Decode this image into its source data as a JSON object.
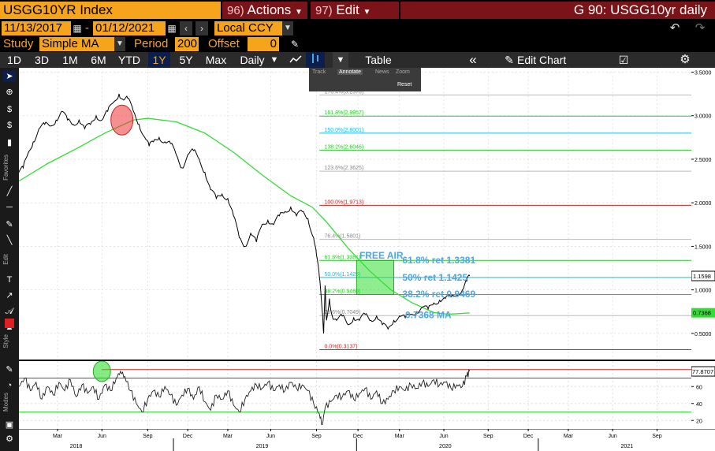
{
  "header": {
    "ticker": "USGG10YR Index",
    "actions_num": "96)",
    "actions_label": "Actions",
    "edit_num": "97)",
    "edit_label": "Edit",
    "page_title": "G 90: USGG10yr daily"
  },
  "range": {
    "start": "11/13/2017",
    "end": "01/12/2021",
    "currency": "Local CCY"
  },
  "study": {
    "label": "Study",
    "value": "Simple MA",
    "period_label": "Period",
    "period_value": "200",
    "offset_label": "Offset",
    "offset_value": "0"
  },
  "toolbar": {
    "periods": [
      "1D",
      "3D",
      "1M",
      "6M",
      "YTD",
      "1Y",
      "5Y",
      "Max"
    ],
    "active_period": "1Y",
    "frequency": "Daily",
    "table_label": "Table",
    "edit_chart_label": "Edit Chart"
  },
  "sub_toolbar": {
    "track": "Track",
    "annotate": "Annotate",
    "news": "News",
    "zoom": "Zoom",
    "reset": "Reset"
  },
  "rail": {
    "favorites": "Favorites",
    "edit": "Edit",
    "style": "Style",
    "modes": "Modes"
  },
  "chart_data": {
    "type": "line",
    "y_ticks": [
      "3.5000",
      "3.0000",
      "2.5000",
      "2.0000",
      "1.5000",
      "1.0000",
      "0.5000"
    ],
    "y_tick_values": [
      3.5,
      3.0,
      2.5,
      2.0,
      1.5,
      1.0,
      0.5
    ],
    "ylim": [
      0.2,
      3.55
    ],
    "last_price_label": "1.1598",
    "last_price": 1.1598,
    "ma_label": "0.7368",
    "ma_value": 0.7368,
    "fib_levels": [
      {
        "label": "176.4%(3.2378)",
        "value": 3.2378,
        "color": "#bbbbbb"
      },
      {
        "label": "161.8%(2.9957)",
        "value": 2.9957,
        "color": "#22cc22"
      },
      {
        "label": "150.0%(2.8001)",
        "value": 2.8001,
        "color": "#11bbee"
      },
      {
        "label": "138.2%(2.6046)",
        "value": 2.6046,
        "color": "#22cc22"
      },
      {
        "label": "123.6%(2.3625)",
        "value": 2.3625,
        "color": "#bbbbbb"
      },
      {
        "label": "100.0%(1.9713)",
        "value": 1.9713,
        "color": "#cc2222"
      },
      {
        "label": "76.4%(1.5801)",
        "value": 1.5801,
        "color": "#bbbbbb"
      },
      {
        "label": "61.8%(1.3381)",
        "value": 1.3381,
        "color": "#22cc22"
      },
      {
        "label": "50.0%(1.1425)",
        "value": 1.1425,
        "color": "#11bbee"
      },
      {
        "label": "38.2%(0.9469)",
        "value": 0.9469,
        "color": "#22cc22"
      },
      {
        "label": "23.6%(0.7049)",
        "value": 0.7049,
        "color": "#bbbbbb"
      },
      {
        "label": "0.0%(0.3137)",
        "value": 0.3137,
        "color": "#cc2222"
      }
    ],
    "annotations": {
      "free_air": "FREE AIR",
      "ret_618": "61.8% ret 1.3381",
      "ret_50": "50% ret 1.1425",
      "ret_382": "38.2% ret 0.9469",
      "ma_text": "0.7368 MA"
    },
    "price_series": [
      [
        0,
        2.35
      ],
      [
        3,
        2.4
      ],
      [
        6,
        2.55
      ],
      [
        10,
        2.7
      ],
      [
        14,
        2.85
      ],
      [
        18,
        2.9
      ],
      [
        22,
        2.88
      ],
      [
        26,
        2.95
      ],
      [
        30,
        3.05
      ],
      [
        34,
        2.95
      ],
      [
        38,
        2.9
      ],
      [
        42,
        2.95
      ],
      [
        46,
        2.85
      ],
      [
        50,
        2.9
      ],
      [
        54,
        3.0
      ],
      [
        58,
        2.95
      ],
      [
        62,
        3.05
      ],
      [
        66,
        3.15
      ],
      [
        70,
        3.25
      ],
      [
        73,
        3.18
      ],
      [
        76,
        3.2
      ],
      [
        80,
        3.05
      ],
      [
        84,
        2.9
      ],
      [
        88,
        2.75
      ],
      [
        91,
        2.65
      ],
      [
        94,
        2.7
      ],
      [
        98,
        2.75
      ],
      [
        102,
        2.7
      ],
      [
        106,
        2.68
      ],
      [
        110,
        2.55
      ],
      [
        114,
        2.4
      ],
      [
        118,
        2.55
      ],
      [
        122,
        2.6
      ],
      [
        126,
        2.5
      ],
      [
        130,
        2.35
      ],
      [
        134,
        2.15
      ],
      [
        138,
        2.05
      ],
      [
        142,
        2.1
      ],
      [
        146,
        2.05
      ],
      [
        150,
        1.85
      ],
      [
        154,
        1.6
      ],
      [
        158,
        1.5
      ],
      [
        162,
        1.65
      ],
      [
        166,
        1.55
      ],
      [
        170,
        1.75
      ],
      [
        174,
        1.8
      ],
      [
        178,
        1.75
      ],
      [
        182,
        1.85
      ],
      [
        186,
        1.9
      ],
      [
        190,
        1.95
      ],
      [
        194,
        1.85
      ],
      [
        198,
        1.9
      ],
      [
        202,
        1.82
      ],
      [
        206,
        1.6
      ],
      [
        208,
        1.4
      ],
      [
        210,
        1.15
      ],
      [
        212,
        0.75
      ],
      [
        213,
        0.5
      ],
      [
        214,
        1.05
      ],
      [
        215,
        0.65
      ],
      [
        217,
        0.9
      ],
      [
        219,
        0.7
      ],
      [
        222,
        0.65
      ],
      [
        226,
        0.7
      ],
      [
        230,
        0.6
      ],
      [
        234,
        0.68
      ],
      [
        238,
        0.65
      ],
      [
        242,
        0.72
      ],
      [
        246,
        0.65
      ],
      [
        250,
        0.7
      ],
      [
        254,
        0.6
      ],
      [
        258,
        0.55
      ],
      [
        262,
        0.65
      ],
      [
        266,
        0.7
      ],
      [
        270,
        0.68
      ],
      [
        274,
        0.72
      ],
      [
        278,
        0.75
      ],
      [
        282,
        0.8
      ],
      [
        286,
        0.78
      ],
      [
        290,
        0.85
      ],
      [
        294,
        0.88
      ],
      [
        298,
        0.9
      ],
      [
        302,
        0.92
      ],
      [
        306,
        0.95
      ],
      [
        310,
        1.0
      ],
      [
        313,
        1.1
      ],
      [
        315,
        1.16
      ]
    ],
    "ma_series": [
      [
        0,
        2.25
      ],
      [
        20,
        2.45
      ],
      [
        40,
        2.62
      ],
      [
        60,
        2.8
      ],
      [
        80,
        2.95
      ],
      [
        90,
        2.97
      ],
      [
        110,
        2.93
      ],
      [
        130,
        2.8
      ],
      [
        150,
        2.58
      ],
      [
        170,
        2.32
      ],
      [
        190,
        2.08
      ],
      [
        205,
        1.95
      ],
      [
        215,
        1.78
      ],
      [
        230,
        1.48
      ],
      [
        245,
        1.22
      ],
      [
        260,
        1.0
      ],
      [
        275,
        0.85
      ],
      [
        290,
        0.74
      ],
      [
        300,
        0.72
      ],
      [
        310,
        0.73
      ],
      [
        315,
        0.7368
      ]
    ],
    "x_ticks": [
      "Mar",
      "Jun",
      "Sep",
      "Dec",
      "Mar",
      "Jun",
      "Sep",
      "Dec",
      "Mar",
      "Jun",
      "Sep",
      "Dec",
      "Mar",
      "Jun",
      "Sep"
    ],
    "x_tick_values": [
      27,
      58,
      90,
      118,
      146,
      176,
      208,
      237,
      266,
      297,
      328,
      356,
      384,
      415,
      446
    ],
    "x_years": [
      "2018",
      "2019",
      "2020",
      "2021"
    ],
    "x_year_values": [
      40,
      170,
      298,
      425
    ],
    "xlim": [
      0,
      470
    ],
    "oscillator": {
      "y_ticks": [
        "60",
        "40",
        "20"
      ],
      "y_tick_values": [
        60,
        40,
        20
      ],
      "ylim": [
        10,
        90
      ],
      "last_label": "77.8707",
      "last_value": 77.8707,
      "upper_line": 80,
      "mid_line": 70,
      "lower_line": 30,
      "series": [
        [
          0,
          60
        ],
        [
          4,
          70
        ],
        [
          8,
          55
        ],
        [
          12,
          65
        ],
        [
          16,
          45
        ],
        [
          20,
          60
        ],
        [
          24,
          50
        ],
        [
          28,
          65
        ],
        [
          32,
          55
        ],
        [
          36,
          68
        ],
        [
          40,
          48
        ],
        [
          44,
          62
        ],
        [
          48,
          52
        ],
        [
          52,
          60
        ],
        [
          56,
          45
        ],
        [
          60,
          62
        ],
        [
          64,
          55
        ],
        [
          68,
          70
        ],
        [
          71,
          78
        ],
        [
          74,
          72
        ],
        [
          78,
          55
        ],
        [
          82,
          40
        ],
        [
          86,
          30
        ],
        [
          90,
          45
        ],
        [
          94,
          55
        ],
        [
          98,
          48
        ],
        [
          102,
          60
        ],
        [
          106,
          50
        ],
        [
          110,
          38
        ],
        [
          114,
          50
        ],
        [
          118,
          58
        ],
        [
          122,
          45
        ],
        [
          126,
          60
        ],
        [
          130,
          42
        ],
        [
          134,
          32
        ],
        [
          138,
          50
        ],
        [
          142,
          45
        ],
        [
          146,
          55
        ],
        [
          150,
          38
        ],
        [
          154,
          30
        ],
        [
          158,
          45
        ],
        [
          162,
          55
        ],
        [
          166,
          62
        ],
        [
          170,
          58
        ],
        [
          174,
          65
        ],
        [
          178,
          55
        ],
        [
          182,
          62
        ],
        [
          186,
          55
        ],
        [
          190,
          65
        ],
        [
          194,
          58
        ],
        [
          198,
          62
        ],
        [
          202,
          55
        ],
        [
          206,
          40
        ],
        [
          210,
          28
        ],
        [
          212,
          15
        ],
        [
          214,
          35
        ],
        [
          218,
          42
        ],
        [
          222,
          50
        ],
        [
          226,
          48
        ],
        [
          230,
          55
        ],
        [
          234,
          45
        ],
        [
          238,
          52
        ],
        [
          242,
          58
        ],
        [
          246,
          45
        ],
        [
          250,
          55
        ],
        [
          254,
          40
        ],
        [
          258,
          45
        ],
        [
          262,
          55
        ],
        [
          266,
          60
        ],
        [
          270,
          55
        ],
        [
          274,
          62
        ],
        [
          278,
          58
        ],
        [
          282,
          65
        ],
        [
          286,
          60
        ],
        [
          290,
          68
        ],
        [
          294,
          62
        ],
        [
          298,
          65
        ],
        [
          302,
          58
        ],
        [
          306,
          62
        ],
        [
          310,
          60
        ],
        [
          313,
          72
        ],
        [
          315,
          78
        ]
      ]
    },
    "highlight_circles": [
      {
        "x": 72,
        "y": 2.95,
        "where": "price"
      },
      {
        "x": 58,
        "y": 78,
        "where": "oscillator"
      }
    ],
    "free_air_box": {
      "x0": 236,
      "x1": 262,
      "y0": 0.9469,
      "y1": 1.3381
    }
  },
  "colors": {
    "orange": "#f7a41d",
    "maroon": "#7a1419",
    "price_line": "#000000",
    "ma_line": "#33dd33",
    "annotation_blue": "#4da6e0",
    "circle_red": "#ee3333",
    "circle_green": "#33dd33"
  }
}
